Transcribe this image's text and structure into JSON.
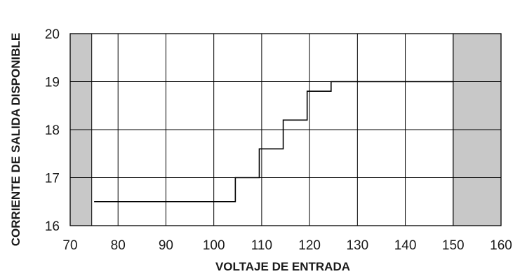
{
  "chart_data": {
    "type": "line",
    "xlabel": "VOLTAJE DE ENTRADA",
    "ylabel": "CORRIENTE DE SALIDA DISPONIBLE",
    "xlim": [
      70,
      160
    ],
    "ylim": [
      16,
      20
    ],
    "x_ticks": [
      70,
      80,
      90,
      100,
      110,
      120,
      130,
      140,
      150,
      160
    ],
    "y_ticks": [
      16,
      17,
      18,
      19,
      20
    ],
    "grid": true,
    "shaded_regions": [
      {
        "x_start": 70,
        "x_end": 74.5,
        "color": "#c8c8c8"
      },
      {
        "x_start": 150,
        "x_end": 160,
        "color": "#c8c8c8"
      }
    ],
    "series": [
      {
        "step": true,
        "color": "#000000",
        "points": [
          [
            75,
            16.5
          ],
          [
            104.5,
            16.5
          ],
          [
            104.5,
            17.0
          ],
          [
            109.5,
            17.0
          ],
          [
            109.5,
            17.6
          ],
          [
            114.5,
            17.6
          ],
          [
            114.5,
            18.2
          ],
          [
            119.5,
            18.2
          ],
          [
            119.5,
            18.8
          ],
          [
            124.5,
            18.8
          ],
          [
            124.5,
            19.0
          ],
          [
            150,
            19.0
          ]
        ]
      }
    ]
  }
}
